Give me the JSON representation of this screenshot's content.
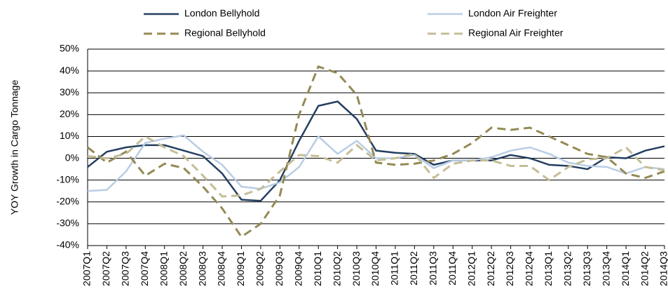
{
  "chart_data": {
    "type": "line",
    "y_label": "YOY Growth in Cargo Tonnage",
    "categories": [
      "2007Q1",
      "2007Q2",
      "2007Q3",
      "2007Q4",
      "2008Q1",
      "2008Q2",
      "2008Q3",
      "2008Q4",
      "2009Q1",
      "2009Q2",
      "2009Q3",
      "2009Q4",
      "2010Q1",
      "2010Q2",
      "2010Q3",
      "2010Q4",
      "2011Q1",
      "2011Q2",
      "2011Q3",
      "2011Q4",
      "2012Q1",
      "2012Q2",
      "2012Q3",
      "2012Q4",
      "2013Q1",
      "2013Q2",
      "2013Q3",
      "2013Q4",
      "2014Q1",
      "2014Q2",
      "2014Q3"
    ],
    "series": [
      {
        "name": "London Bellyhold",
        "color": "#243f60",
        "dashed": false,
        "values": [
          -4,
          3,
          5,
          6,
          6,
          3.5,
          1,
          -7,
          -19,
          -19.5,
          -10,
          8,
          24,
          26,
          18,
          3.5,
          2.5,
          2,
          -3,
          -1,
          -1,
          -1,
          1.5,
          0,
          -3,
          -3.5,
          -5,
          0.5,
          0,
          3.5,
          5.5
        ]
      },
      {
        "name": "London Air Freighter",
        "color": "#b9cde5",
        "dashed": false,
        "values": [
          -15,
          -14.5,
          -6,
          7,
          9,
          10.5,
          3,
          -3,
          -13,
          -14,
          -11,
          -4,
          10,
          2,
          8,
          0,
          0,
          1.5,
          -4.5,
          -1,
          -1,
          0.5,
          3.5,
          5,
          2,
          -2,
          -3.5,
          -4,
          -7,
          -4,
          -5
        ]
      },
      {
        "name": "Regional Bellyhold",
        "color": "#948a54",
        "dashed": true,
        "values": [
          5,
          -2,
          3,
          -8,
          -2.5,
          -4.5,
          -13,
          -23,
          -36,
          -30,
          -17,
          20,
          42,
          39,
          29,
          -2,
          -3,
          -2.5,
          -1,
          2,
          7,
          14,
          13,
          14,
          10,
          6,
          2,
          0.5,
          -7,
          -9,
          -6
        ]
      },
      {
        "name": "Regional Air Freighter",
        "color": "#c4bd97",
        "dashed": true,
        "values": [
          1,
          0,
          2,
          10,
          5,
          1,
          -8,
          -17.5,
          -17,
          -14,
          -6,
          1.5,
          1,
          -2,
          6,
          -1,
          0,
          2,
          -9,
          -2.5,
          -1,
          -1,
          -3.5,
          -3.5,
          -10,
          -4,
          -0.5,
          0,
          5,
          -4,
          -5.5
        ]
      }
    ],
    "ylim": [
      -40,
      50
    ],
    "yticks": [
      {
        "value": -40,
        "label": "-40%"
      },
      {
        "value": -30,
        "label": "-30%"
      },
      {
        "value": -20,
        "label": "-20%"
      },
      {
        "value": -10,
        "label": "-10%"
      },
      {
        "value": 0,
        "label": "0%"
      },
      {
        "value": 10,
        "label": "10%"
      },
      {
        "value": 20,
        "label": "20%"
      },
      {
        "value": 30,
        "label": "30%"
      },
      {
        "value": 40,
        "label": "40%"
      },
      {
        "value": 50,
        "label": "50%"
      }
    ],
    "grid": true,
    "legend": "top"
  }
}
